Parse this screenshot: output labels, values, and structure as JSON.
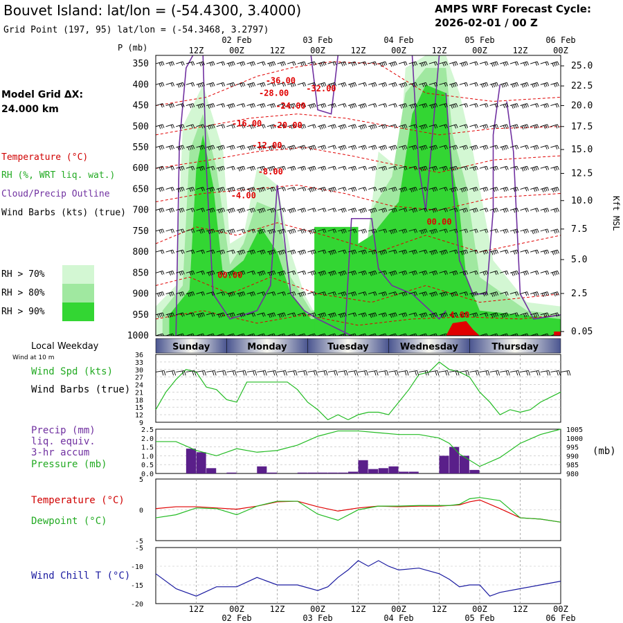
{
  "header": {
    "title": "Bouvet Island:  lat/lon = (-54.4300, 3.4000)",
    "subtitle": "Grid Point (197, 95) lat/lon = (-54.3468, 3.2797)",
    "cycle_label": "AMPS WRF Forecast Cycle:",
    "cycle_value": "2026-02-01 / 00  Z",
    "model_grid_label": "Model Grid ΔX:",
    "model_grid_value": " 24.000 km"
  },
  "legend": {
    "temperature": "Temperature (°C)",
    "rh": "RH (%, WRT liq. wat.)",
    "cloud": "Cloud/Precip Outline",
    "wind": "Wind Barbs (kts) (true)",
    "rh70": "RH > 70%",
    "rh80": "RH > 80%",
    "rh90": "RH > 90%"
  },
  "colors": {
    "rh70": "#d3f7d3",
    "rh80": "#a0e8a0",
    "rh90": "#33d633",
    "temp": "#e00000",
    "cloud": "#7030a0",
    "wind": "#000000",
    "precip_bar": "#5a1f8a",
    "pressure": "#22bb22",
    "dewpoint": "#22bb22",
    "windchill": "#1a1aa0",
    "weekday_bar": "#4a5590"
  },
  "time_axis": {
    "hours_total": 120,
    "top_ticks": [
      "12Z",
      "00Z",
      "12Z",
      "00Z",
      "12Z",
      "00Z",
      "12Z",
      "00Z",
      "12Z",
      "00Z"
    ],
    "top_ticks_hours": [
      12,
      24,
      36,
      48,
      60,
      72,
      84,
      96,
      108,
      120
    ],
    "date_labels": [
      "02 Feb",
      "03 Feb",
      "04 Feb",
      "05 Feb",
      "06 Feb"
    ],
    "date_hours": [
      24,
      48,
      72,
      96,
      120
    ],
    "local_weekday_label": "Local Weekday",
    "weekdays": [
      {
        "name": "Sunday",
        "start": 0,
        "end": 21
      },
      {
        "name": "Monday",
        "start": 21,
        "end": 45
      },
      {
        "name": "Tuesday",
        "start": 45,
        "end": 69
      },
      {
        "name": "Wednesday",
        "start": 69,
        "end": 93
      },
      {
        "name": "Thursday",
        "start": 93,
        "end": 120
      }
    ]
  },
  "cross_section": {
    "p_axis_label": "P (mb)",
    "pressure_levels": [
      350,
      400,
      450,
      500,
      550,
      600,
      650,
      700,
      750,
      800,
      850,
      900,
      950,
      1000
    ],
    "kft_label": "Kft MSL",
    "kft_ticks": [
      {
        "p": 355,
        "label": "25.0"
      },
      {
        "p": 403,
        "label": "22.5"
      },
      {
        "p": 450,
        "label": "20.0"
      },
      {
        "p": 500,
        "label": "17.5"
      },
      {
        "p": 555,
        "label": "15.0"
      },
      {
        "p": 612,
        "label": "12.5"
      },
      {
        "p": 677,
        "label": "10.0"
      },
      {
        "p": 745,
        "label": "7.5"
      },
      {
        "p": 818,
        "label": "5.0"
      },
      {
        "p": 899,
        "label": "2.5"
      },
      {
        "p": 990,
        "label": "0.05"
      }
    ],
    "temp_labels": [
      {
        "t": 37,
        "p": 390,
        "label": "-36.00"
      },
      {
        "t": 49,
        "p": 409,
        "label": "-32.00"
      },
      {
        "t": 35,
        "p": 420,
        "label": "-28.00"
      },
      {
        "t": 40,
        "p": 451,
        "label": "-24.00"
      },
      {
        "t": 39,
        "p": 497,
        "label": "-20.00"
      },
      {
        "t": 27,
        "p": 493,
        "label": "-16.00"
      },
      {
        "t": 33,
        "p": 545,
        "label": "-12.00"
      },
      {
        "t": 34,
        "p": 608,
        "label": "-8.00"
      },
      {
        "t": 26,
        "p": 665,
        "label": "-4.00"
      },
      {
        "t": 84,
        "p": 728,
        "label": "00.00"
      },
      {
        "t": 22,
        "p": 855,
        "label": "00.00"
      },
      {
        "t": 90,
        "p": 950,
        "label": "4.00"
      }
    ]
  },
  "wind_panel": {
    "header": "Wind at 10 m",
    "label_spd": "Wind Spd (kts)",
    "label_barbs": "Wind Barbs (true)",
    "yticks": [
      9,
      12,
      15,
      18,
      21,
      24,
      27,
      30,
      33,
      36
    ]
  },
  "precip_panel": {
    "label1": "Precip (mm)",
    "label2": "liq. equiv.",
    "label3": "3-hr accum",
    "label4": "Pressure (mb)",
    "unit": "(mb)",
    "yticks_left": [
      "0.0",
      "0.5",
      "1.0",
      "1.5",
      "2.0",
      "2.5"
    ],
    "yticks_right": [
      980,
      985,
      990,
      995,
      1000,
      1005
    ]
  },
  "temp_panel": {
    "label_t": "Temperature (°C)",
    "label_td": "Dewpoint (°C)",
    "yticks": [
      -5,
      0,
      5
    ]
  },
  "chill_panel": {
    "label": "Wind Chill T (°C)",
    "yticks": [
      -20,
      -15,
      -10,
      -5
    ]
  },
  "chart_data": [
    {
      "type": "line",
      "title": "Wind at 10 m",
      "ylabel": "Wind Spd (kts)",
      "ylim": [
        9,
        36
      ],
      "series": [
        {
          "name": "Wind Spd (kts)",
          "x": [
            0,
            3,
            6,
            9,
            12,
            15,
            18,
            21,
            24,
            27,
            30,
            33,
            36,
            39,
            42,
            45,
            48,
            51,
            54,
            57,
            60,
            63,
            66,
            69,
            72,
            75,
            78,
            81,
            84,
            87,
            90,
            93,
            96,
            99,
            102,
            105,
            108,
            111,
            114,
            117,
            120
          ],
          "values": [
            14,
            21,
            26,
            30,
            29,
            23,
            22,
            18,
            17,
            25,
            25,
            25,
            25,
            25,
            22,
            17,
            14,
            10,
            12,
            10,
            12,
            13,
            13,
            12,
            17,
            22,
            28,
            29,
            33,
            30,
            29,
            27,
            21,
            17,
            12,
            14,
            13,
            14,
            17,
            19,
            21
          ]
        }
      ]
    },
    {
      "type": "bar",
      "title": "3-hr accum Precip (mm) liq. equiv.",
      "ylabel": "Precip (mm)",
      "ylim": [
        0,
        2.5
      ],
      "x": [
        9,
        12,
        15,
        21,
        30,
        33,
        42,
        45,
        48,
        51,
        54,
        57,
        60,
        63,
        66,
        69,
        72,
        75,
        84,
        87,
        90,
        93
      ],
      "values": [
        1.4,
        1.2,
        0.3,
        0.05,
        0.4,
        0.05,
        0.05,
        0.05,
        0.05,
        0.05,
        0.05,
        0.1,
        0.75,
        0.25,
        0.3,
        0.4,
        0.1,
        0.1,
        1.0,
        1.5,
        1.0,
        0.2
      ]
    },
    {
      "type": "line",
      "title": "Pressure (mb)",
      "ylabel": "(mb)",
      "ylim": [
        980,
        1005
      ],
      "series": [
        {
          "name": "Pressure (mb)",
          "x": [
            0,
            6,
            12,
            18,
            24,
            30,
            36,
            42,
            48,
            54,
            60,
            66,
            72,
            78,
            84,
            87,
            90,
            96,
            102,
            108,
            114,
            120
          ],
          "values": [
            998,
            998,
            993,
            990,
            994,
            992,
            993,
            996,
            1001,
            1004,
            1004,
            1003,
            1002,
            1002,
            1000,
            997,
            991,
            984,
            989,
            997,
            1002,
            1005
          ]
        }
      ]
    },
    {
      "type": "line",
      "title": "Temperature / Dewpoint",
      "ylim": [
        -5,
        5
      ],
      "series": [
        {
          "name": "Temperature (°C)",
          "x": [
            0,
            6,
            12,
            18,
            24,
            30,
            36,
            42,
            48,
            54,
            60,
            66,
            72,
            78,
            84,
            87,
            90,
            93,
            96,
            102,
            108,
            114,
            120
          ],
          "values": [
            0.2,
            0.5,
            0.5,
            0.3,
            0.1,
            0.6,
            1.3,
            1.4,
            0.5,
            -0.2,
            0.3,
            0.6,
            0.5,
            0.6,
            0.6,
            0.7,
            0.8,
            1.3,
            1.6,
            0.2,
            -1.3,
            -1.5,
            -2.0
          ]
        },
        {
          "name": "Dewpoint (°C)",
          "x": [
            0,
            6,
            12,
            18,
            24,
            30,
            36,
            42,
            48,
            54,
            60,
            66,
            72,
            78,
            84,
            87,
            90,
            93,
            96,
            102,
            108,
            114,
            120
          ],
          "values": [
            -1.3,
            -0.8,
            0.3,
            0.2,
            -0.8,
            0.6,
            1.4,
            1.4,
            -0.7,
            -1.7,
            0.0,
            0.6,
            0.6,
            0.7,
            0.7,
            0.7,
            0.9,
            1.8,
            2.0,
            1.5,
            -1.3,
            -1.5,
            -2.0
          ]
        }
      ]
    },
    {
      "type": "line",
      "title": "Wind Chill T (°C)",
      "ylim": [
        -20,
        -5
      ],
      "series": [
        {
          "name": "Wind Chill T (°C)",
          "x": [
            0,
            6,
            12,
            18,
            24,
            30,
            36,
            42,
            48,
            51,
            54,
            57,
            60,
            63,
            66,
            69,
            72,
            78,
            84,
            87,
            90,
            93,
            96,
            99,
            102,
            108,
            114,
            120
          ],
          "values": [
            -12,
            -16,
            -18,
            -15.5,
            -15.5,
            -13,
            -15,
            -15,
            -16.5,
            -15.5,
            -13,
            -11,
            -8.5,
            -10,
            -8.5,
            -10,
            -11,
            -10.5,
            -12,
            -13.5,
            -15.5,
            -15,
            -15,
            -18,
            -17,
            -16,
            -15,
            -14
          ]
        }
      ]
    }
  ]
}
